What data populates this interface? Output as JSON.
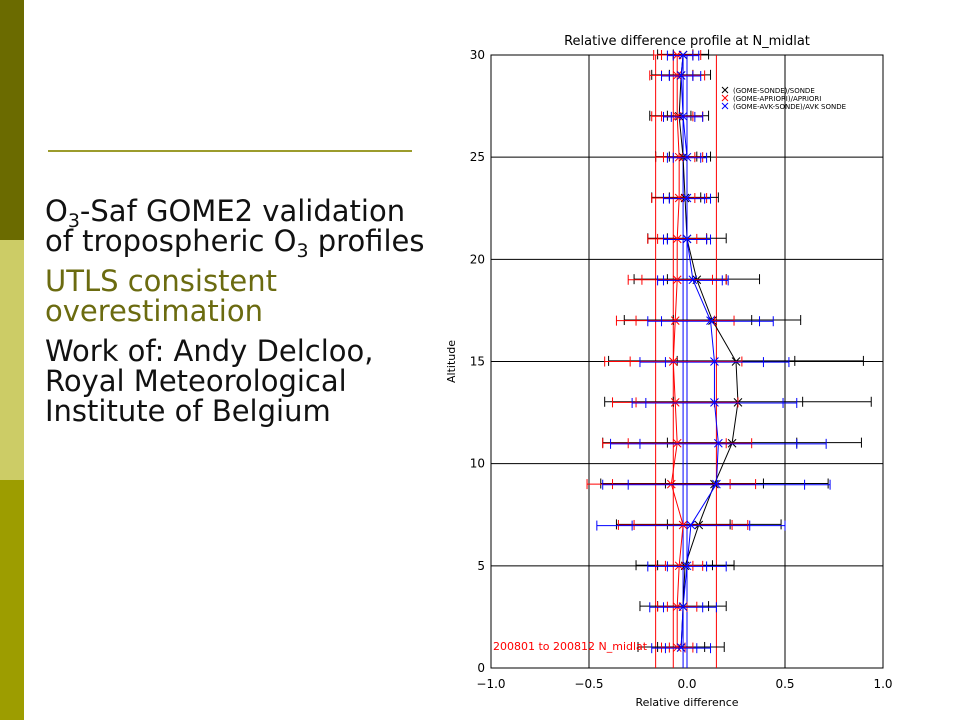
{
  "slide": {
    "colors": {
      "bar_top": "#6b6b00",
      "bar_mid": "#cccc66",
      "bar_bottom": "#9d9d00",
      "rule": "#9c9c2c",
      "accent_text": "#6b6b10"
    },
    "bullets": [
      {
        "prefix": "O",
        "sub1": "3",
        "mid": "-Saf GOME2 validation of tropospheric O",
        "sub2": "3",
        "suffix": " profiles"
      },
      {
        "text": "UTLS consistent overestimation"
      },
      {
        "text": "Work of: Andy Delcloo, Royal Meteorological Institute of Belgium"
      }
    ]
  },
  "chart_data": {
    "type": "line",
    "title": "Relative difference profile at N_midlat",
    "xlabel": "Relative difference",
    "ylabel": "Altitude",
    "xlim": [
      -1.0,
      1.0
    ],
    "ylim": [
      0,
      30
    ],
    "xticks": [
      "-1.0",
      "-0.5",
      "0.0",
      "0.5",
      "1.0"
    ],
    "yticks": [
      "0",
      "5",
      "10",
      "15",
      "20",
      "25",
      "30"
    ],
    "grid": true,
    "legend_position": "top-right",
    "annotation": "200801 to 200812 N_midlat",
    "altitudes": [
      1,
      3,
      5,
      7,
      9,
      11,
      13,
      15,
      17,
      19,
      21,
      23,
      25,
      27,
      29,
      30
    ],
    "series": [
      {
        "name": "(GOME-SONDE)/SONDE",
        "color": "#000000",
        "values": [
          -0.03,
          -0.02,
          -0.01,
          0.06,
          0.14,
          0.23,
          0.26,
          0.25,
          0.13,
          0.05,
          0.0,
          -0.01,
          -0.02,
          -0.04,
          -0.03,
          -0.02
        ],
        "err_inner": [
          0.12,
          0.13,
          0.14,
          0.16,
          0.25,
          0.33,
          0.33,
          0.3,
          0.2,
          0.15,
          0.1,
          0.08,
          0.07,
          0.06,
          0.06,
          0.05
        ],
        "err_outer": [
          0.22,
          0.22,
          0.25,
          0.42,
          0.58,
          0.66,
          0.68,
          0.65,
          0.45,
          0.32,
          0.2,
          0.17,
          0.14,
          0.15,
          0.15,
          0.13
        ]
      },
      {
        "name": "(GOME-APRIORI)/APRIORI",
        "color": "#ff0000",
        "values": [
          -0.05,
          -0.05,
          -0.04,
          -0.02,
          -0.08,
          -0.05,
          -0.06,
          -0.07,
          -0.06,
          -0.05,
          -0.05,
          -0.04,
          -0.04,
          -0.05,
          -0.05,
          -0.05
        ],
        "err_inner": [
          0.04,
          0.05,
          0.07,
          0.25,
          0.3,
          0.25,
          0.2,
          0.22,
          0.2,
          0.18,
          0.1,
          0.08,
          0.08,
          0.08,
          0.08,
          0.08
        ],
        "err_outer": [
          0.08,
          0.1,
          0.12,
          0.33,
          0.43,
          0.38,
          0.32,
          0.35,
          0.3,
          0.25,
          0.15,
          0.14,
          0.12,
          0.13,
          0.14,
          0.12
        ]
      },
      {
        "name": "(GOME-AVK-SONDE)/AVK SONDE",
        "color": "#0000ff",
        "values": [
          -0.03,
          -0.02,
          0.0,
          0.02,
          0.15,
          0.16,
          0.14,
          0.14,
          0.12,
          0.03,
          0.0,
          0.0,
          0.0,
          -0.02,
          -0.03,
          -0.02
        ],
        "err_inner": [
          0.08,
          0.1,
          0.1,
          0.3,
          0.45,
          0.4,
          0.35,
          0.25,
          0.25,
          0.15,
          0.1,
          0.09,
          0.07,
          0.06,
          0.06,
          0.05
        ],
        "err_outer": [
          0.15,
          0.17,
          0.2,
          0.48,
          0.58,
          0.55,
          0.42,
          0.38,
          0.32,
          0.18,
          0.12,
          0.12,
          0.1,
          0.1,
          0.1,
          0.08
        ]
      }
    ],
    "reference_lines": [
      {
        "color": "#ff0000",
        "x": [
          -0.16,
          -0.07,
          0.15
        ]
      },
      {
        "color": "#0000ff",
        "x": [
          -0.02,
          0.0
        ]
      }
    ]
  }
}
